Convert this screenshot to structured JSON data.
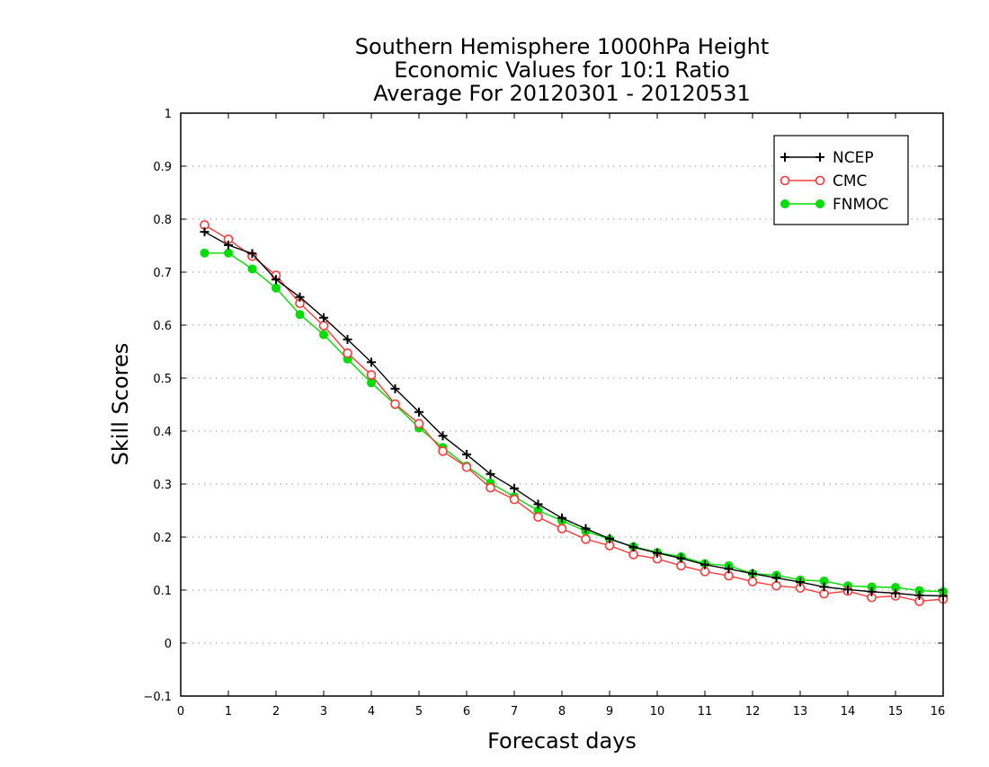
{
  "chart_data": {
    "type": "line",
    "title": [
      "Southern Hemisphere 1000hPa Height",
      "Economic Values for 10:1 Ratio",
      "Average For 20120301 - 20120531"
    ],
    "xlabel": "Forecast days",
    "ylabel": "Skill Scores",
    "xlim": [
      0,
      16
    ],
    "ylim": [
      -0.1,
      1
    ],
    "xticks": [
      0,
      1,
      2,
      3,
      4,
      5,
      6,
      7,
      8,
      9,
      10,
      11,
      12,
      13,
      14,
      15,
      16
    ],
    "xtick_labels": [
      "0",
      "1",
      "2",
      "3",
      "4",
      "5",
      "6",
      "7",
      "8",
      "9",
      "10",
      "11",
      "12",
      "13",
      "14",
      "15",
      "16"
    ],
    "yticks": [
      -0.1,
      0,
      0.1,
      0.2,
      0.3,
      0.4,
      0.5,
      0.6,
      0.7,
      0.8,
      0.9,
      1
    ],
    "ytick_labels": [
      "−0.1",
      "0",
      "0.1",
      "0.2",
      "0.3",
      "0.4",
      "0.5",
      "0.6",
      "0.7",
      "0.8",
      "0.9",
      "1"
    ],
    "grid": "horizontal dotted",
    "legend_position": "top-right",
    "x": [
      0.5,
      1,
      1.5,
      2,
      2.5,
      3,
      3.5,
      4,
      4.5,
      5,
      5.5,
      6,
      6.5,
      7,
      7.5,
      8,
      8.5,
      9,
      9.5,
      10,
      10.5,
      11,
      11.5,
      12,
      12.5,
      13,
      13.5,
      14,
      14.5,
      15,
      15.5,
      16
    ],
    "series": [
      {
        "name": "NCEP",
        "color": "#000000",
        "marker": "plus",
        "values": [
          0.776,
          0.751,
          0.735,
          0.686,
          0.653,
          0.614,
          0.573,
          0.53,
          0.48,
          0.436,
          0.391,
          0.356,
          0.319,
          0.292,
          0.262,
          0.236,
          0.216,
          0.197,
          0.181,
          0.17,
          0.16,
          0.148,
          0.14,
          0.131,
          0.123,
          0.115,
          0.106,
          0.101,
          0.097,
          0.094,
          0.09,
          0.089
        ]
      },
      {
        "name": "CMC",
        "color": "#ff3b3b",
        "marker": "open-circle",
        "values": [
          0.789,
          0.762,
          0.73,
          0.694,
          0.641,
          0.599,
          0.547,
          0.506,
          0.451,
          0.414,
          0.362,
          0.332,
          0.293,
          0.271,
          0.238,
          0.216,
          0.196,
          0.184,
          0.167,
          0.159,
          0.146,
          0.135,
          0.127,
          0.116,
          0.108,
          0.104,
          0.093,
          0.098,
          0.086,
          0.089,
          0.079,
          0.083
        ]
      },
      {
        "name": "FNMOC",
        "color": "#00dd00",
        "marker": "filled-circle",
        "values": [
          0.736,
          0.736,
          0.706,
          0.67,
          0.62,
          0.582,
          0.536,
          0.491,
          0.45,
          0.406,
          0.369,
          0.334,
          0.302,
          0.276,
          0.25,
          0.231,
          0.211,
          0.196,
          0.182,
          0.171,
          0.163,
          0.15,
          0.146,
          0.131,
          0.128,
          0.119,
          0.117,
          0.108,
          0.106,
          0.105,
          0.099,
          0.097
        ]
      }
    ]
  }
}
